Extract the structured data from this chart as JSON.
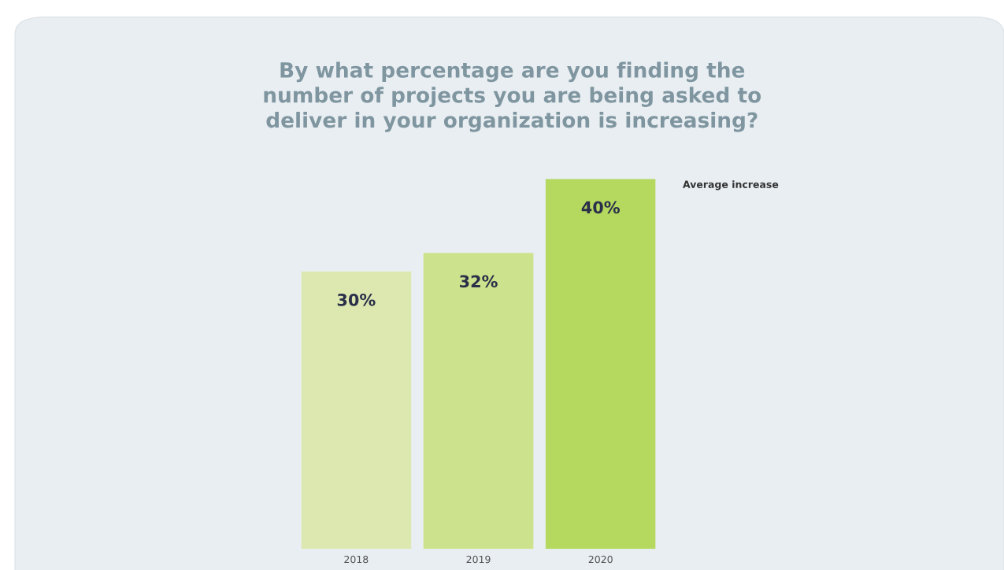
{
  "chart_data": {
    "type": "bar",
    "title": "By what percentage are you finding the\nnumber of projects you are being asked to\ndeliver in your organization is increasing?",
    "categories": [
      "2018",
      "2019",
      "2020"
    ],
    "values": [
      30,
      32,
      40
    ],
    "value_labels": [
      "30%",
      "32%",
      "40%"
    ],
    "colors": [
      "#dde8b0",
      "#cde28c",
      "#b5d85e"
    ],
    "annotations": [
      "Average increase"
    ],
    "grid": false,
    "legend": false
  }
}
